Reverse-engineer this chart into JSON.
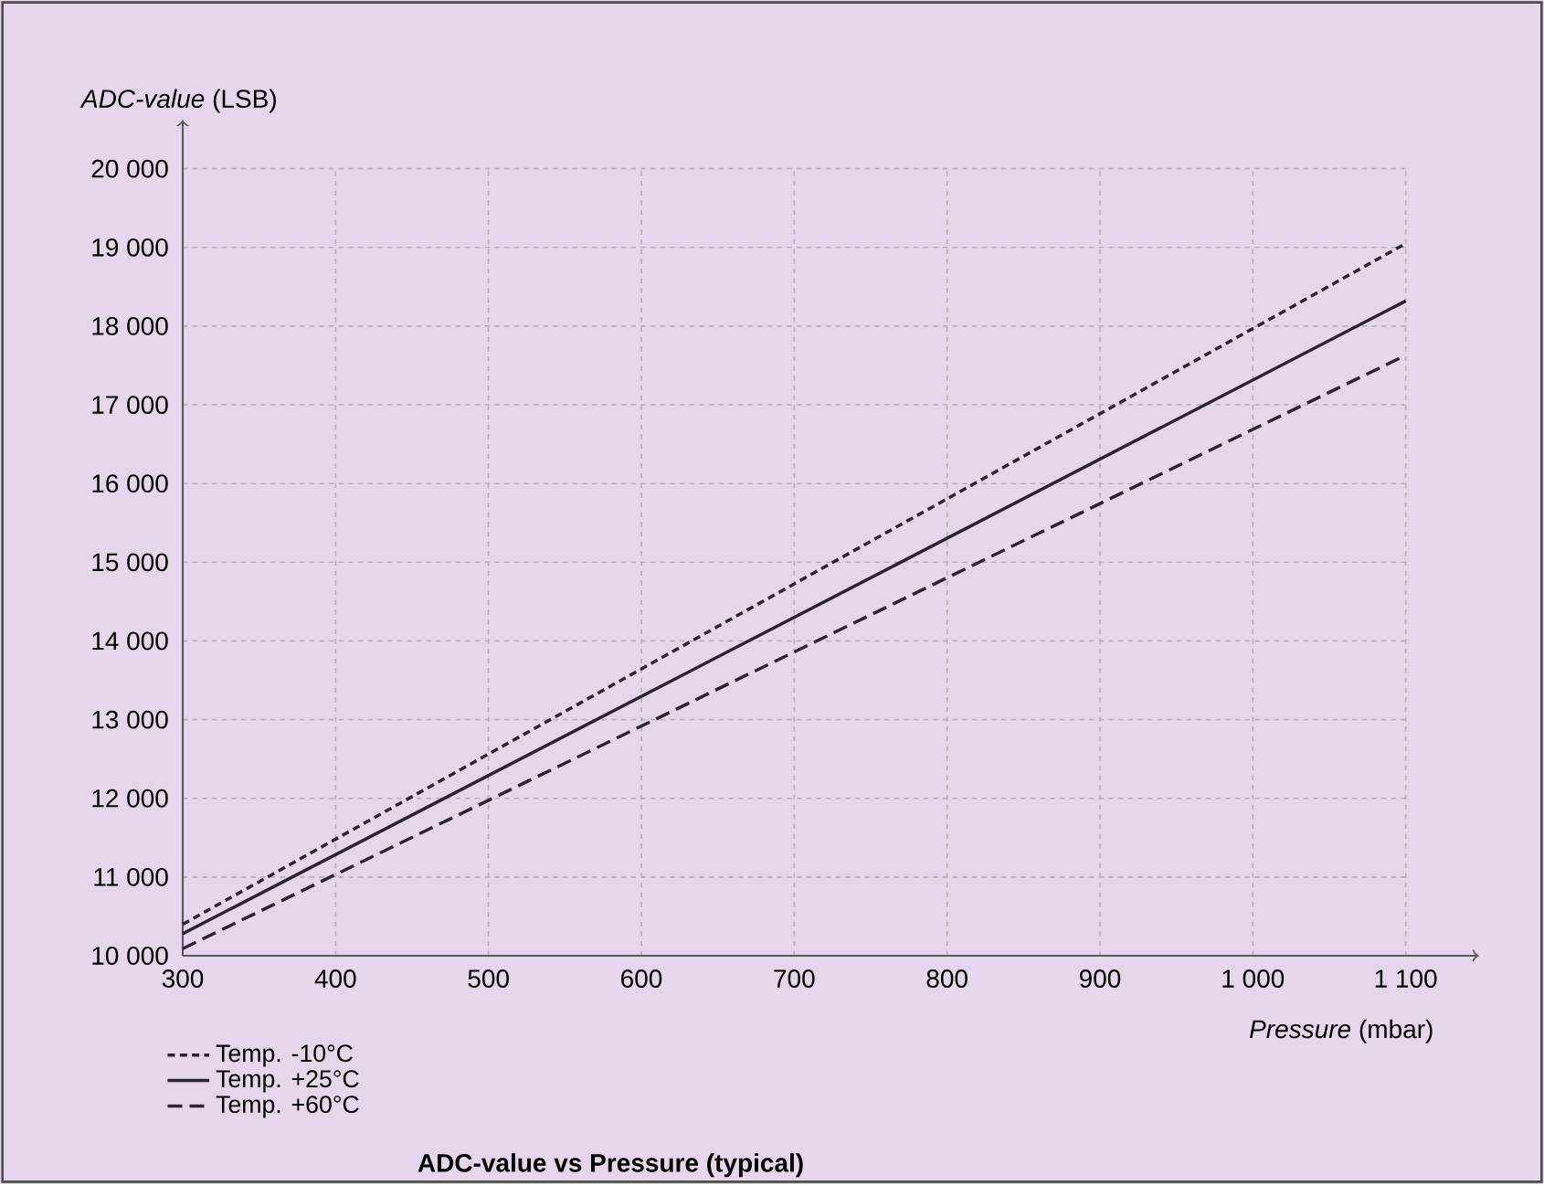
{
  "chart_data": {
    "type": "line",
    "title": "ADC-value vs Pressure (typical)",
    "xlabel": "*Pressure* (mbar)",
    "ylabel": "*ADC-value* (LSB)",
    "x": [
      300,
      1100
    ],
    "series": [
      {
        "name": "Temp. -10°C",
        "color": "#2b2233",
        "values": [
          10400,
          19050
        ],
        "line_style": "dotted"
      },
      {
        "name": "Temp. +25°C",
        "color": "#2b2233",
        "values": [
          10280,
          18320
        ],
        "line_style": "solid"
      },
      {
        "name": "Temp. +60°C",
        "color": "#2b2233",
        "values": [
          10090,
          17630
        ],
        "line_style": "dashed"
      }
    ],
    "xlim": [
      300,
      1100
    ],
    "ylim": [
      10000,
      20000
    ],
    "xticks": [
      300,
      400,
      500,
      600,
      700,
      800,
      900,
      {
        "value": 1000,
        "label": "1 000"
      },
      {
        "value": 1100,
        "label": "1 100"
      }
    ],
    "yticks": [
      {
        "value": 10000,
        "label": "10 000"
      },
      {
        "value": 11000,
        "label": "11 000"
      },
      {
        "value": 12000,
        "label": "12 000"
      },
      {
        "value": 13000,
        "label": "13 000"
      },
      {
        "value": 14000,
        "label": "14 000"
      },
      {
        "value": 15000,
        "label": "15 000"
      },
      {
        "value": 16000,
        "label": "16 000"
      },
      {
        "value": 17000,
        "label": "17 000"
      },
      {
        "value": 18000,
        "label": "18 000"
      },
      {
        "value": 19000,
        "label": "19 000"
      },
      {
        "value": 20000,
        "label": "20 000"
      }
    ],
    "grid": true,
    "legend": "bottom left",
    "marker": "none"
  }
}
